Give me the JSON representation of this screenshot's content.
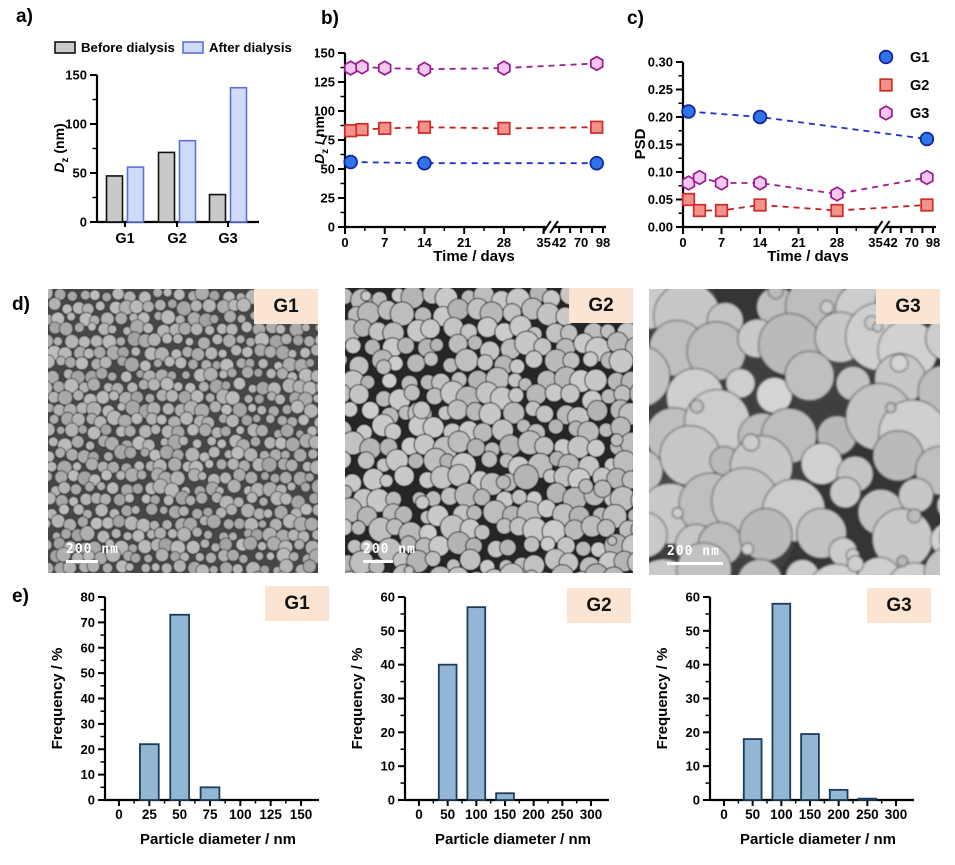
{
  "panels": {
    "a": "a)",
    "b": "b)",
    "c": "c)",
    "d": "d)",
    "e": "e)"
  },
  "colors": {
    "peach_label_bg": "#fbe4d2",
    "axis": "#000000",
    "bar_before_fill": "#c9c9c9",
    "bar_before_stroke": "#111111",
    "bar_after_fill": "#cfdcf9",
    "bar_after_stroke": "#5e6fd9",
    "hist_fill": "#93b6d5",
    "hist_stroke": "#1d3c5c",
    "g1_fill": "#2f74e8",
    "g1_stroke": "#12239e",
    "g1_line": "#2330cc",
    "g2_fill": "#f2928b",
    "g2_stroke": "#cf2b27",
    "g2_line": "#c4211d",
    "g3_fill": "#f5c7ee",
    "g3_stroke": "#98188e",
    "g3_line": "#9c1d92"
  },
  "chart_data": [
    {
      "id": "a",
      "type": "bar",
      "categories": [
        "G1",
        "G2",
        "G3"
      ],
      "series": [
        {
          "name": "Before dialysis",
          "values": [
            47,
            71,
            28
          ],
          "fill": "#c9c9c9",
          "stroke": "#111111"
        },
        {
          "name": "After dialysis",
          "values": [
            56,
            83,
            137
          ],
          "fill": "#cfdcf9",
          "stroke": "#5e6fd9"
        }
      ],
      "ylabel": "Dz (nm)",
      "ylabel_rich": [
        {
          "t": "D",
          "italic": true
        },
        {
          "t": "z",
          "sub": true
        },
        {
          "t": " (nm)"
        }
      ],
      "ylim": [
        0,
        150
      ],
      "yticks": [
        0,
        50,
        100,
        150
      ],
      "legend_position": "top"
    },
    {
      "id": "b",
      "type": "line",
      "xlabel": "Time / days",
      "ylabel": "Dz / nm",
      "ylabel_rich": [
        {
          "t": "D",
          "italic": true
        },
        {
          "t": "z",
          "sub": true
        },
        {
          "t": " / nm"
        }
      ],
      "ylim": [
        0,
        150
      ],
      "yticks": [
        0,
        25,
        50,
        75,
        100,
        125,
        150
      ],
      "x_axis": {
        "break": true,
        "seg1": [
          0,
          35
        ],
        "seg2": [
          42,
          98
        ],
        "seg1_ticks": [
          0,
          7,
          14,
          21,
          28,
          35
        ],
        "seg2_ticks": [
          42,
          56,
          70,
          84,
          98
        ],
        "seg2_labeled": [
          42,
          70,
          98
        ]
      },
      "series": [
        {
          "name": "G1",
          "marker": "circle",
          "x": [
            1,
            14,
            90
          ],
          "y": [
            56,
            55,
            55
          ],
          "fill": "#2f74e8",
          "stroke": "#12239e",
          "line": "#2330cc"
        },
        {
          "name": "G2",
          "marker": "square",
          "x": [
            1,
            3,
            7,
            14,
            28,
            90
          ],
          "y": [
            83,
            84,
            85,
            86,
            85,
            86
          ],
          "fill": "#f2928b",
          "stroke": "#cf2b27",
          "line": "#c4211d"
        },
        {
          "name": "G3",
          "marker": "hexagon",
          "x": [
            1,
            3,
            7,
            14,
            28,
            90
          ],
          "y": [
            137,
            138,
            137,
            136,
            137,
            141
          ],
          "fill": "#f5c7ee",
          "stroke": "#98188e",
          "line": "#9c1d92"
        }
      ]
    },
    {
      "id": "c",
      "type": "line",
      "xlabel": "Time / days",
      "ylabel": "PSD",
      "ylim": [
        0,
        0.3
      ],
      "yticks": [
        0,
        0.05,
        0.1,
        0.15,
        0.2,
        0.25,
        0.3
      ],
      "ydecimals": 2,
      "yminor": true,
      "x_axis": {
        "break": true,
        "seg1": [
          0,
          35
        ],
        "seg2": [
          42,
          98
        ],
        "seg1_ticks": [
          0,
          7,
          14,
          21,
          28,
          35
        ],
        "seg2_ticks": [
          42,
          56,
          70,
          84,
          98
        ],
        "seg2_labeled": [
          42,
          70,
          98
        ]
      },
      "legend": true,
      "series": [
        {
          "name": "G1",
          "marker": "circle",
          "x": [
            1,
            14,
            90
          ],
          "y": [
            0.21,
            0.2,
            0.16
          ],
          "fill": "#2f74e8",
          "stroke": "#12239e",
          "line": "#2330cc"
        },
        {
          "name": "G2",
          "marker": "square",
          "x": [
            1,
            3,
            7,
            14,
            28,
            90
          ],
          "y": [
            0.05,
            0.03,
            0.03,
            0.04,
            0.03,
            0.04
          ],
          "fill": "#f2928b",
          "stroke": "#cf2b27",
          "line": "#c4211d"
        },
        {
          "name": "G3",
          "marker": "hexagon",
          "x": [
            1,
            3,
            7,
            14,
            28,
            90
          ],
          "y": [
            0.08,
            0.09,
            0.08,
            0.08,
            0.06,
            0.09
          ],
          "fill": "#f5c7ee",
          "stroke": "#98188e",
          "line": "#9c1d92"
        }
      ]
    },
    {
      "id": "e1",
      "type": "histogram",
      "label": "G1",
      "xlabel": "Particle diameter / nm",
      "ylabel": "Frequency / %",
      "ylim": [
        0,
        80
      ],
      "yticks": [
        0,
        10,
        20,
        30,
        40,
        50,
        60,
        70,
        80
      ],
      "xticks": [
        0,
        25,
        50,
        75,
        100,
        125,
        150
      ],
      "bars": [
        {
          "x": 25,
          "value": 22
        },
        {
          "x": 50,
          "value": 73
        },
        {
          "x": 75,
          "value": 5
        }
      ],
      "bar_fill": "#93b6d5",
      "bar_stroke": "#1d3c5c"
    },
    {
      "id": "e2",
      "type": "histogram",
      "label": "G2",
      "xlabel": "Particle diameter / nm",
      "ylabel": "Frequency / %",
      "ylim": [
        0,
        60
      ],
      "yticks": [
        0,
        10,
        20,
        30,
        40,
        50,
        60
      ],
      "xticks": [
        0,
        50,
        100,
        150,
        200,
        250,
        300
      ],
      "bars": [
        {
          "x": 50,
          "value": 40
        },
        {
          "x": 100,
          "value": 57
        },
        {
          "x": 150,
          "value": 2
        }
      ],
      "bar_fill": "#93b6d5",
      "bar_stroke": "#1d3c5c"
    },
    {
      "id": "e3",
      "type": "histogram",
      "label": "G3",
      "xlabel": "Particle diameter / nm",
      "ylabel": "Frequency / %",
      "ylim": [
        0,
        60
      ],
      "yticks": [
        0,
        10,
        20,
        30,
        40,
        50,
        60
      ],
      "xticks": [
        0,
        50,
        100,
        150,
        200,
        250,
        300
      ],
      "bars": [
        {
          "x": 50,
          "value": 18
        },
        {
          "x": 100,
          "value": 58
        },
        {
          "x": 150,
          "value": 19.5
        },
        {
          "x": 200,
          "value": 3
        },
        {
          "x": 250,
          "value": 0.4
        }
      ],
      "bar_fill": "#93b6d5",
      "bar_stroke": "#1d3c5c"
    }
  ],
  "tem": {
    "images": [
      {
        "id": "G1",
        "label": "G1",
        "scalebar": "200 nm"
      },
      {
        "id": "G2",
        "label": "G2",
        "scalebar": "200 nm"
      },
      {
        "id": "G3",
        "label": "G3",
        "scalebar": "200 nm"
      }
    ]
  }
}
